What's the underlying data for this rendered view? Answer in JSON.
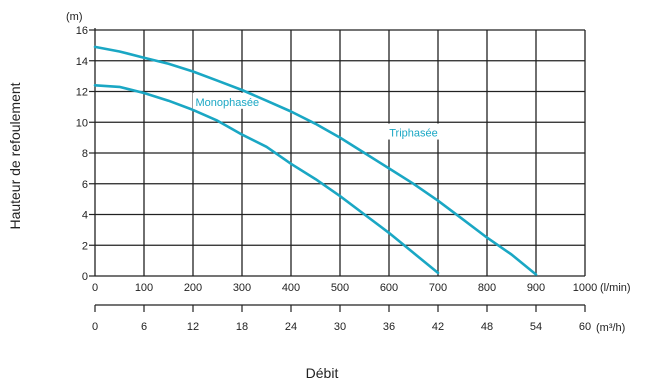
{
  "chart_data": {
    "type": "line",
    "xlabel": "Débit",
    "ylabel": "Hauteur de refoulement",
    "y_unit": "(m)",
    "x_unit": "(l/min)",
    "x2_unit": "(m³/h)",
    "xlim": [
      0,
      1000
    ],
    "ylim": [
      0,
      16
    ],
    "x_ticks": [
      "0",
      "100",
      "200",
      "300",
      "400",
      "500",
      "600",
      "700",
      "800",
      "900",
      "1000"
    ],
    "x2_ticks": [
      "0",
      "6",
      "12",
      "18",
      "24",
      "30",
      "36",
      "42",
      "48",
      "54",
      "60"
    ],
    "y_ticks": [
      "0",
      "2",
      "4",
      "6",
      "8",
      "10",
      "12",
      "14",
      "16"
    ],
    "grid": true,
    "series_color": "#1aa7c4",
    "series": [
      {
        "name": "Monophasée",
        "x": [
          0,
          50,
          100,
          150,
          200,
          250,
          300,
          350,
          400,
          450,
          500,
          550,
          600,
          650,
          700
        ],
        "y": [
          12.4,
          12.3,
          11.9,
          11.4,
          10.8,
          10.1,
          9.2,
          8.4,
          7.3,
          6.3,
          5.2,
          4.0,
          2.8,
          1.5,
          0.2
        ]
      },
      {
        "name": "Triphasée",
        "x": [
          0,
          50,
          100,
          150,
          200,
          250,
          300,
          350,
          400,
          450,
          500,
          550,
          600,
          650,
          700,
          750,
          800,
          850,
          900
        ],
        "y": [
          14.9,
          14.6,
          14.2,
          13.8,
          13.3,
          12.7,
          12.1,
          11.4,
          10.7,
          9.9,
          9.0,
          8.0,
          7.0,
          6.0,
          4.9,
          3.7,
          2.5,
          1.4,
          0.1
        ]
      }
    ]
  }
}
